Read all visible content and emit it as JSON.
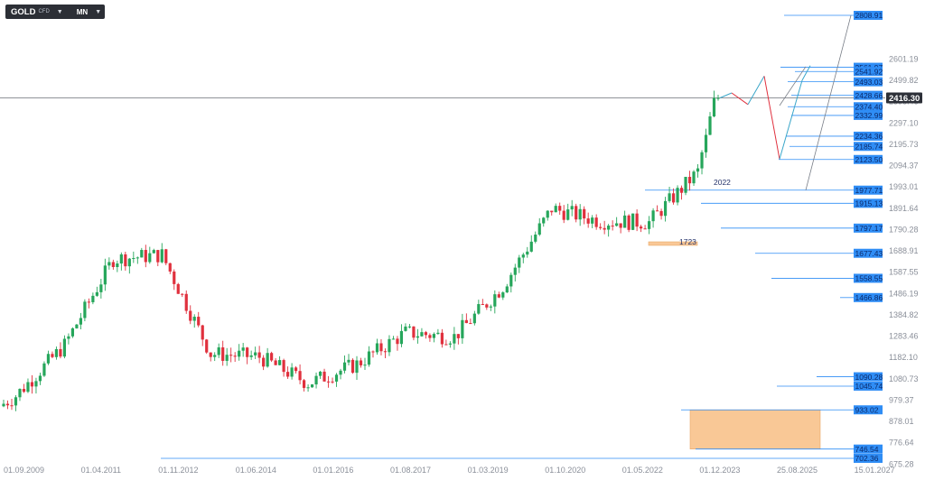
{
  "toolbar": {
    "symbol": "GOLD",
    "symbol_suffix": "CFD",
    "timeframe": "MN",
    "symbol_caret": "▼",
    "timeframe_caret": "▼"
  },
  "colors": {
    "bull": "#26a65b",
    "bear": "#e0303d",
    "level_line": "#2f8df5",
    "level_label_bg": "#2f8df5",
    "price_tag_bg": "#2d3038",
    "zone_fill": "#f9c896",
    "forecast_blue": "#3aa6c9",
    "forecast_red": "#e0303d",
    "fan_gray": "#7a7f88"
  },
  "chart_data": {
    "type": "candlestick",
    "title": "",
    "timeframe": "monthly",
    "x_tick_labels": [
      "01.09.2009",
      "01.04.2011",
      "01.11.2012",
      "01.06.2014",
      "01.01.2016",
      "01.08.2017",
      "01.03.2019",
      "01.10.2020",
      "01.05.2022",
      "01.12.2023",
      "25.08.2025",
      "15.01.2027"
    ],
    "y_tick_labels": [
      "2601.19",
      "2499.82",
      "2398.46",
      "2297.10",
      "2195.73",
      "2094.37",
      "1993.01",
      "1891.64",
      "1790.28",
      "1688.91",
      "1587.55",
      "1486.19",
      "1384.82",
      "1283.46",
      "1182.10",
      "1080.73",
      "979.37",
      "878.01",
      "776.64",
      "675.28"
    ],
    "ylim": [
      640,
      2760
    ],
    "grid": false,
    "current_price": "2416.30",
    "price_line": 2416.3,
    "candles_annual_approx": [
      {
        "period": "2009-09",
        "open": 950,
        "high": 1010,
        "low": 920,
        "close": 1000
      },
      {
        "period": "2010",
        "open": 1000,
        "high": 1265,
        "low": 1050,
        "close": 1240
      },
      {
        "period": "2011",
        "open": 1240,
        "high": 1920,
        "low": 1310,
        "close": 1650
      },
      {
        "period": "2012",
        "open": 1650,
        "high": 1795,
        "low": 1540,
        "close": 1670
      },
      {
        "period": "2013",
        "open": 1670,
        "high": 1700,
        "low": 1180,
        "close": 1200
      },
      {
        "period": "2014",
        "open": 1200,
        "high": 1390,
        "low": 1130,
        "close": 1185
      },
      {
        "period": "2015",
        "open": 1185,
        "high": 1305,
        "low": 1045,
        "close": 1060
      },
      {
        "period": "2016",
        "open": 1060,
        "high": 1375,
        "low": 1125,
        "close": 1150
      },
      {
        "period": "2017",
        "open": 1150,
        "high": 1355,
        "low": 1200,
        "close": 1300
      },
      {
        "period": "2018",
        "open": 1300,
        "high": 1370,
        "low": 1160,
        "close": 1280
      },
      {
        "period": "2019",
        "open": 1280,
        "high": 1560,
        "low": 1265,
        "close": 1520
      },
      {
        "period": "2020",
        "open": 1520,
        "high": 2070,
        "low": 1450,
        "close": 1890
      },
      {
        "period": "2021",
        "open": 1890,
        "high": 1960,
        "low": 1680,
        "close": 1830
      },
      {
        "period": "2022",
        "open": 1830,
        "high": 2070,
        "low": 1615,
        "close": 1825
      },
      {
        "period": "2023",
        "open": 1825,
        "high": 2150,
        "low": 1805,
        "close": 2065
      },
      {
        "period": "2024",
        "open": 2065,
        "high": 2450,
        "low": 1985,
        "close": 2416
      }
    ],
    "levels": [
      "2808.91",
      "2561.97",
      "2541.92",
      "2493.03",
      "2428.66",
      "2374.40",
      "2332.99",
      "2234.36",
      "2185.74",
      "2123.50",
      "1977.71",
      "1915.13",
      "1797.17",
      "1677.43",
      "1558.55",
      "1466.86",
      "1090.28",
      "1045.74",
      "933.02",
      "746.54",
      "702.36"
    ],
    "annotations": [
      "2022",
      "1723"
    ],
    "zones": [
      {
        "low": 1715,
        "high": 1732
      },
      {
        "low": 746.54,
        "high": 933.02
      }
    ],
    "forecast_path_blue": [
      [
        2416,
        2416
      ],
      [
        2400,
        2460
      ],
      [
        2380,
        2520
      ]
    ],
    "forecast_path_red": [
      [
        2420,
        2380
      ],
      [
        2520,
        2125
      ]
    ]
  }
}
